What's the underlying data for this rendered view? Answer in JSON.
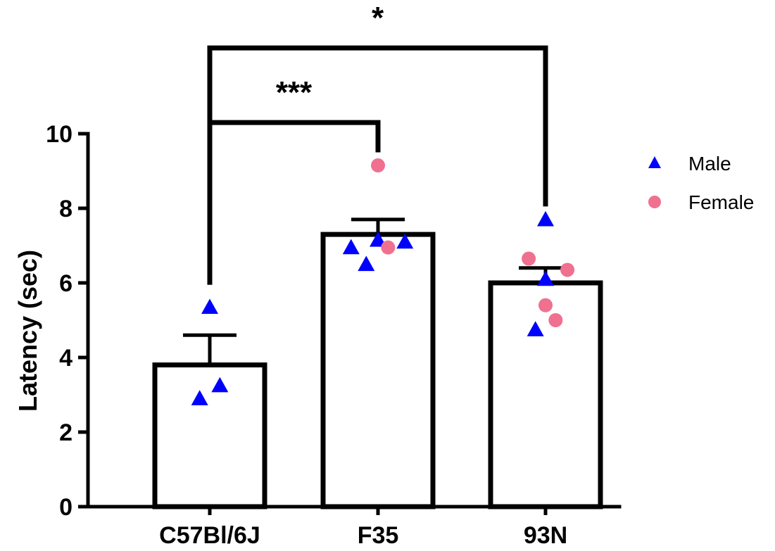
{
  "chart_data": {
    "type": "bar",
    "categories": [
      "C57Bl/6J",
      "F35",
      "93N"
    ],
    "ylabel": "Latency (sec)",
    "xlabel": "",
    "ylim": [
      0,
      10
    ],
    "yticks": [
      0,
      2,
      4,
      6,
      8,
      10
    ],
    "grid": false,
    "legend_position": "top-right",
    "bar_fill": "#ffffff",
    "bar_edge": "#000000",
    "means": [
      3.8,
      7.3,
      6.0
    ],
    "sem": [
      0.8,
      0.4,
      0.4
    ],
    "series": [
      {
        "name": "Male",
        "marker": "triangle",
        "color": "#0000ff",
        "points": [
          {
            "category": "C57Bl/6J",
            "value": 5.35,
            "offset": 0
          },
          {
            "category": "C57Bl/6J",
            "value": 3.25,
            "offset": 0.12
          },
          {
            "category": "C57Bl/6J",
            "value": 2.9,
            "offset": -0.12
          },
          {
            "category": "F35",
            "value": 6.95,
            "offset": -0.32
          },
          {
            "category": "F35",
            "value": 6.5,
            "offset": -0.14
          },
          {
            "category": "F35",
            "value": 7.15,
            "offset": 0.0
          },
          {
            "category": "F35",
            "value": 7.1,
            "offset": 0.32
          },
          {
            "category": "93N",
            "value": 7.7,
            "offset": 0.0
          },
          {
            "category": "93N",
            "value": 6.1,
            "offset": 0.0
          },
          {
            "category": "93N",
            "value": 4.75,
            "offset": -0.12
          }
        ]
      },
      {
        "name": "Female",
        "marker": "circle",
        "color": "#f07090",
        "points": [
          {
            "category": "F35",
            "value": 9.15,
            "offset": 0.0
          },
          {
            "category": "F35",
            "value": 6.95,
            "offset": 0.12
          },
          {
            "category": "93N",
            "value": 6.65,
            "offset": -0.2
          },
          {
            "category": "93N",
            "value": 6.35,
            "offset": 0.26
          },
          {
            "category": "93N",
            "value": 5.4,
            "offset": 0.0
          },
          {
            "category": "93N",
            "value": 5.0,
            "offset": 0.12
          }
        ]
      }
    ],
    "significance": [
      {
        "from": "C57Bl/6J",
        "to": "F35",
        "label": "***",
        "level": 10.3
      },
      {
        "from": "C57Bl/6J",
        "to": "93N",
        "label": "*",
        "level": 12.3
      }
    ]
  }
}
